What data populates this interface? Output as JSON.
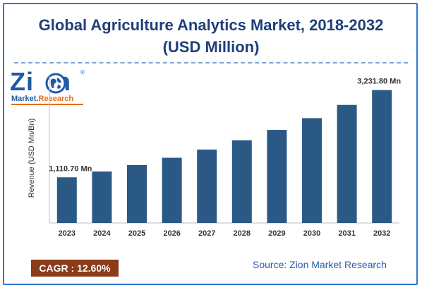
{
  "header": {
    "title_line1": "Global Agriculture Analytics Market, 2018-2032",
    "title_line2": "(USD Million)"
  },
  "logo": {
    "main_left": "Zi",
    "main_right": "n",
    "sub_left": "Market.",
    "sub_right": "Research",
    "reg_mark": "®"
  },
  "chart_data": {
    "type": "bar",
    "title": "Global Agriculture Analytics Market, 2018-2032 (USD Million)",
    "ylabel": "Revenue (USD Mn/Bn)",
    "xlabel": "",
    "categories": [
      "2023",
      "2024",
      "2025",
      "2026",
      "2027",
      "2028",
      "2029",
      "2030",
      "2031",
      "2032"
    ],
    "values": [
      1110.7,
      1250.6,
      1408.2,
      1585.7,
      1785.5,
      2010.5,
      2263.8,
      2549.1,
      2870.3,
      3231.8
    ],
    "data_labels": [
      {
        "index": 0,
        "text": "1,110.70 Mn"
      },
      {
        "index": 9,
        "text": "3,231.80 Mn"
      }
    ],
    "ylim": [
      0,
      3500
    ],
    "grid": false,
    "bar_color": "#2b5986"
  },
  "footer": {
    "cagr": "CAGR : 12.60%",
    "source": "Source: Zion Market Research"
  },
  "colors": {
    "frame": "#2f77d0",
    "title": "#1f3f7a",
    "cagr_bg": "#8b3a1a",
    "source": "#2a5da8"
  }
}
